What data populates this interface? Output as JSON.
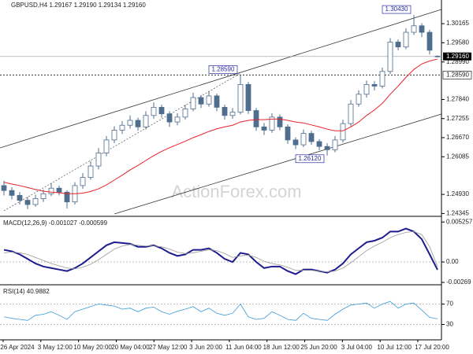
{
  "chart_data": {
    "type": "candlestick",
    "title": "GBPUSD,H4  1.29167 1.29190 1.29134 1.29160",
    "watermark": "ActionForex.com",
    "candles": [
      [
        1.252,
        1.2535,
        1.249,
        1.2505
      ],
      [
        1.2505,
        1.2515,
        1.2478,
        1.249
      ],
      [
        1.249,
        1.25,
        1.2462,
        1.2475
      ],
      [
        1.2475,
        1.2485,
        1.2448,
        1.2462
      ],
      [
        1.2462,
        1.2492,
        1.2455,
        1.248
      ],
      [
        1.248,
        1.2508,
        1.247,
        1.2495
      ],
      [
        1.2495,
        1.2528,
        1.2488,
        1.2512
      ],
      [
        1.2512,
        1.252,
        1.249,
        1.25
      ],
      [
        1.25,
        1.2506,
        1.245,
        1.247
      ],
      [
        1.247,
        1.253,
        1.2462,
        1.252
      ],
      [
        1.252,
        1.2558,
        1.251,
        1.2545
      ],
      [
        1.2545,
        1.2595,
        1.2538,
        1.258
      ],
      [
        1.258,
        1.2635,
        1.257,
        1.262
      ],
      [
        1.262,
        1.2672,
        1.261,
        1.266
      ],
      [
        1.266,
        1.2702,
        1.265,
        1.269
      ],
      [
        1.269,
        1.2718,
        1.2678,
        1.2705
      ],
      [
        1.2705,
        1.2735,
        1.2695,
        1.272
      ],
      [
        1.272,
        1.2728,
        1.2688,
        1.27
      ],
      [
        1.27,
        1.2748,
        1.2692,
        1.2735
      ],
      [
        1.2735,
        1.2775,
        1.2725,
        1.276
      ],
      [
        1.276,
        1.2768,
        1.2728,
        1.274
      ],
      [
        1.274,
        1.2748,
        1.27,
        1.2715
      ],
      [
        1.2715,
        1.2742,
        1.2705,
        1.273
      ],
      [
        1.273,
        1.2768,
        1.2722,
        1.2755
      ],
      [
        1.2755,
        1.2805,
        1.2748,
        1.279
      ],
      [
        1.279,
        1.2798,
        1.2758,
        1.277
      ],
      [
        1.277,
        1.281,
        1.2762,
        1.2795
      ],
      [
        1.2795,
        1.2802,
        1.2748,
        1.276
      ],
      [
        1.276,
        1.2768,
        1.2722,
        1.2735
      ],
      [
        1.2735,
        1.2758,
        1.2725,
        1.2745
      ],
      [
        1.2745,
        1.2859,
        1.2738,
        1.283
      ],
      [
        1.283,
        1.2838,
        1.274,
        1.275
      ],
      [
        1.275,
        1.2758,
        1.2688,
        1.27
      ],
      [
        1.27,
        1.2712,
        1.2675,
        1.269
      ],
      [
        1.269,
        1.2742,
        1.2682,
        1.273
      ],
      [
        1.273,
        1.2738,
        1.269,
        1.27
      ],
      [
        1.27,
        1.2708,
        1.2648,
        1.266
      ],
      [
        1.266,
        1.2668,
        1.2632,
        1.2645
      ],
      [
        1.2645,
        1.2692,
        1.2638,
        1.268
      ],
      [
        1.268,
        1.2688,
        1.2645,
        1.2655
      ],
      [
        1.2655,
        1.2662,
        1.2628,
        1.264
      ],
      [
        1.264,
        1.265,
        1.2612,
        1.263
      ],
      [
        1.263,
        1.2672,
        1.2622,
        1.266
      ],
      [
        1.266,
        1.2722,
        1.2652,
        1.271
      ],
      [
        1.271,
        1.2782,
        1.2702,
        1.277
      ],
      [
        1.277,
        1.2812,
        1.2762,
        1.28
      ],
      [
        1.28,
        1.2842,
        1.279,
        1.283
      ],
      [
        1.283,
        1.284,
        1.2812,
        1.2825
      ],
      [
        1.2825,
        1.2882,
        1.2818,
        1.287
      ],
      [
        1.287,
        1.2972,
        1.2862,
        1.296
      ],
      [
        1.296,
        1.2968,
        1.2935,
        1.2945
      ],
      [
        1.2945,
        1.3002,
        1.2938,
        1.299
      ],
      [
        1.299,
        1.3043,
        1.2982,
        1.301
      ],
      [
        1.301,
        1.3018,
        1.2975,
        1.299
      ],
      [
        1.299,
        1.2998,
        1.2922,
        1.2935
      ],
      [
        1.29167,
        1.2919,
        1.29134,
        1.2916
      ]
    ],
    "candle_color": "#4f6d8c",
    "ma": {
      "color": "#e8202a",
      "values": [
        1.253,
        1.2525,
        1.252,
        1.2514,
        1.2508,
        1.2503,
        1.25,
        1.2498,
        1.2495,
        1.2495,
        1.2497,
        1.2502,
        1.251,
        1.2522,
        1.2537,
        1.2552,
        1.2568,
        1.2582,
        1.2597,
        1.2612,
        1.2625,
        1.2636,
        1.2646,
        1.2656,
        1.2667,
        1.2676,
        1.2686,
        1.2694,
        1.27,
        1.2705,
        1.2715,
        1.272,
        1.2722,
        1.2722,
        1.2724,
        1.2724,
        1.272,
        1.2715,
        1.2712,
        1.2706,
        1.27,
        1.2693,
        1.2688,
        1.2688,
        1.27,
        1.2715,
        1.2735,
        1.2752,
        1.2772,
        1.28,
        1.2825,
        1.2852,
        1.2876,
        1.2893,
        1.2902,
        1.2908
      ]
    },
    "ylim": [
      1.2433,
      1.3089
    ],
    "yticks": [
      1.30165,
      {
        "value": 1.2958,
        "label": "1.29580"
      },
      {
        "value": 1.2899,
        "label": "1.28990"
      },
      {
        "value": 1.2784,
        "label": "1.27840"
      },
      1.27255,
      {
        "value": 1.2667,
        "label": "1.26670"
      },
      1.26085,
      {
        "value": 1.2493,
        "label": "1.24930"
      },
      1.24345
    ],
    "current_price": {
      "value": 1.2916,
      "label": "1.29160"
    },
    "level": {
      "value": 1.2859,
      "label": "1.28590"
    },
    "annotations": [
      {
        "value": 1.2859,
        "label": "1.28590"
      },
      {
        "value": 1.2612,
        "label": "1.26120"
      },
      {
        "value": 1.3043,
        "label": "1.30430"
      }
    ],
    "x_labels": [
      "26 Apr 2024",
      "3 May 12:00",
      "10 May 20:00",
      "20 May 04:00",
      "27 May 12:00",
      "3 Jun 20:00",
      "11 Jun 04:00",
      "18 Jun 12:00",
      "25 Jun 20:00",
      "3 Jul 04:00",
      "10 Jul 12:00",
      "17 Jul 20:00"
    ],
    "macd": {
      "title": "MACD(12,26,9) -0.001027 -0.000599",
      "ylim": [
        -0.003,
        0.0058
      ],
      "yticks": [
        0.005257,
        {
          "value": 0,
          "label": "0.00"
        },
        -0.00269
      ],
      "series": [
        {
          "color": "#1c1c8e",
          "values": [
            0.0016,
            0.0014,
            0.001,
            0.0004,
            -0.0002,
            -0.0006,
            -0.0008,
            -0.001,
            -0.0012,
            -0.0008,
            -0.0002,
            0.0006,
            0.0014,
            0.0022,
            0.0026,
            0.0025,
            0.0024,
            0.002,
            0.002,
            0.0022,
            0.0018,
            0.0012,
            0.0008,
            0.001,
            0.0016,
            0.0016,
            0.0018,
            0.0012,
            0.0004,
            0.0,
            0.0012,
            0.001,
            0.0,
            -0.0008,
            -0.0006,
            -0.0006,
            -0.0012,
            -0.0016,
            -0.001,
            -0.001,
            -0.0012,
            -0.0014,
            -0.001,
            -0.0002,
            0.001,
            0.0018,
            0.0026,
            0.0028,
            0.0032,
            0.004,
            0.004,
            0.0044,
            0.004,
            0.003,
            0.001,
            -0.001027
          ]
        },
        {
          "color": "#9a9a9a",
          "values": [
            0.0012,
            0.0013,
            0.0012,
            0.001,
            0.0006,
            0.0002,
            -0.0002,
            -0.0005,
            -0.0008,
            -0.0009,
            -0.0007,
            -0.0003,
            0.0003,
            0.001,
            0.0017,
            0.0021,
            0.0023,
            0.0022,
            0.0021,
            0.0021,
            0.002,
            0.0017,
            0.0013,
            0.0011,
            0.0012,
            0.0014,
            0.0016,
            0.0015,
            0.0011,
            0.0006,
            0.0008,
            0.0009,
            0.0006,
            0.0001,
            -0.0002,
            -0.0004,
            -0.0007,
            -0.0011,
            -0.0011,
            -0.0011,
            -0.0012,
            -0.0013,
            -0.0012,
            -0.0008,
            -0.0001,
            0.0007,
            0.0015,
            0.0021,
            0.0026,
            0.0032,
            0.0036,
            0.0039,
            0.004,
            0.0036,
            0.002,
            -0.000599
          ]
        }
      ]
    },
    "rsi": {
      "title": "RSI(14) 40.9882",
      "ylim": [
        0,
        100
      ],
      "yticks": [
        70,
        30
      ],
      "color": "#3a9ad9",
      "values": [
        45,
        42,
        40,
        38,
        48,
        50,
        55,
        48,
        40,
        55,
        60,
        65,
        70,
        68,
        66,
        60,
        62,
        55,
        62,
        64,
        55,
        50,
        56,
        60,
        65,
        55,
        62,
        52,
        48,
        52,
        70,
        45,
        40,
        42,
        55,
        48,
        40,
        38,
        52,
        42,
        40,
        38,
        50,
        60,
        68,
        70,
        72,
        62,
        70,
        75,
        62,
        70,
        72,
        58,
        44,
        40.9882
      ]
    }
  }
}
